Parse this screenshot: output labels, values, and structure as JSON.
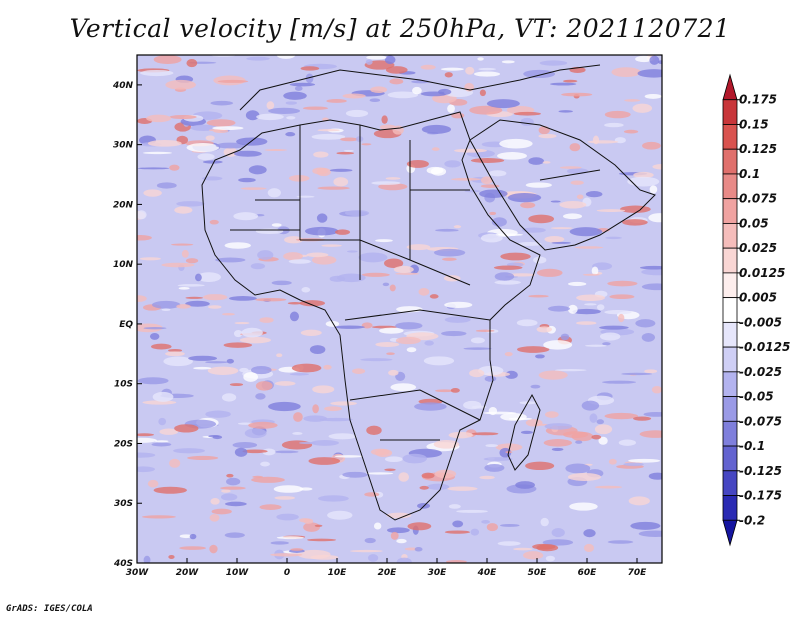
{
  "title": "Vertical velocity [m/s] at 250hPa, VT: 2021120721",
  "credit": "GrADS: IGES/COLA",
  "map": {
    "lat_range": [
      -40,
      45
    ],
    "lon_range": [
      -30,
      75
    ],
    "lat_ticks": [
      {
        "value": 40,
        "label": "40N"
      },
      {
        "value": 30,
        "label": "30N"
      },
      {
        "value": 20,
        "label": "20N"
      },
      {
        "value": 10,
        "label": "10N"
      },
      {
        "value": 0,
        "label": "EQ"
      },
      {
        "value": -10,
        "label": "10S"
      },
      {
        "value": -20,
        "label": "20S"
      },
      {
        "value": -30,
        "label": "30S"
      },
      {
        "value": -40,
        "label": "40S"
      }
    ],
    "lon_ticks": [
      {
        "value": -30,
        "label": "30W"
      },
      {
        "value": -20,
        "label": "20W"
      },
      {
        "value": -10,
        "label": "10W"
      },
      {
        "value": 0,
        "label": "0"
      },
      {
        "value": 10,
        "label": "10E"
      },
      {
        "value": 20,
        "label": "20E"
      },
      {
        "value": 30,
        "label": "30E"
      },
      {
        "value": 40,
        "label": "40E"
      },
      {
        "value": 50,
        "label": "50E"
      },
      {
        "value": 60,
        "label": "60E"
      },
      {
        "value": 70,
        "label": "70E"
      }
    ]
  },
  "colorbar": {
    "levels": [
      "0.175",
      "0.15",
      "0.125",
      "0.1",
      "0.075",
      "0.05",
      "0.025",
      "0.0125",
      "0.005",
      "-0.005",
      "-0.0125",
      "-0.025",
      "-0.05",
      "-0.075",
      "-0.1",
      "-0.125",
      "-0.175",
      "-0.2"
    ],
    "colors": [
      "#b2182b",
      "#c8363a",
      "#d9534f",
      "#e0706c",
      "#e88a87",
      "#f0a3a1",
      "#f5bdbb",
      "#f9d6d4",
      "#fdeeed",
      "#ffffff",
      "#e6e6fb",
      "#cfcff5",
      "#b3b3ef",
      "#9a9ae6",
      "#7f7fdc",
      "#6363d0",
      "#4646c2",
      "#2a2ab3",
      "#1515a0"
    ]
  }
}
